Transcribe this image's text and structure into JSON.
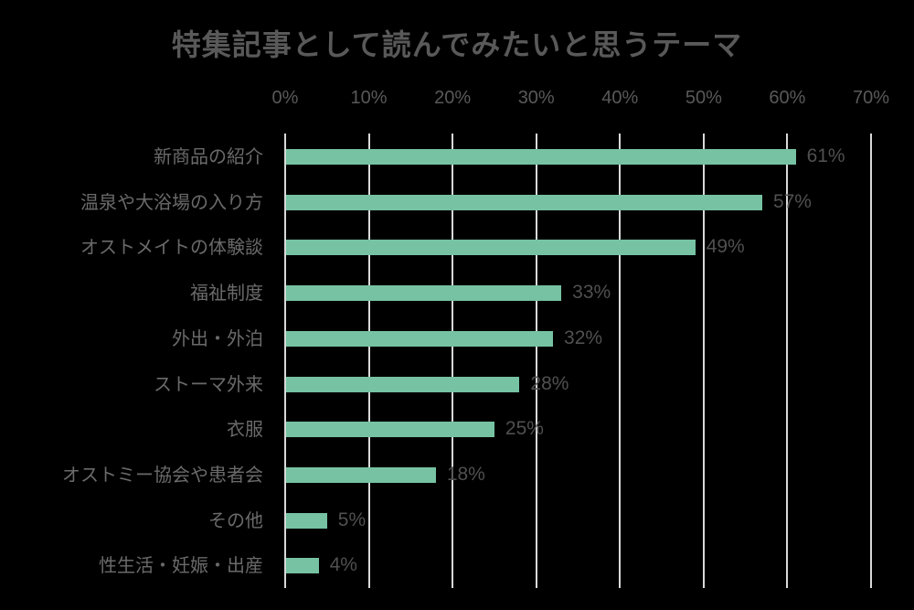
{
  "chart_data": {
    "type": "bar",
    "orientation": "horizontal",
    "title": "特集記事として読んでみたいと思うテーマ",
    "xlabel": "",
    "ylabel": "",
    "xlim": [
      0,
      70
    ],
    "x_ticks": [
      "0%",
      "10%",
      "20%",
      "30%",
      "40%",
      "50%",
      "60%",
      "70%"
    ],
    "grid": true,
    "legend": null,
    "categories": [
      "新商品の紹介",
      "温泉や大浴場の入り方",
      "オストメイトの体験談",
      "福祉制度",
      "外出・外泊",
      "ストーマ外来",
      "衣服",
      "オストミー協会や患者会",
      "その他",
      "性生活・妊娠・出産"
    ],
    "values": [
      61,
      57,
      49,
      33,
      32,
      28,
      25,
      18,
      5,
      4
    ],
    "value_labels": [
      "61%",
      "57%",
      "49%",
      "33%",
      "32%",
      "28%",
      "25%",
      "18%",
      "5%",
      "4%"
    ],
    "bar_color": "#76c2a2",
    "background_color": "#000000"
  }
}
